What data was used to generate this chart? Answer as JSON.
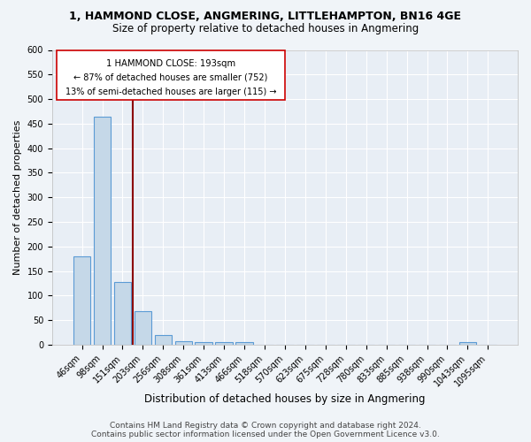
{
  "title": "1, HAMMOND CLOSE, ANGMERING, LITTLEHAMPTON, BN16 4GE",
  "subtitle": "Size of property relative to detached houses in Angmering",
  "xlabel": "Distribution of detached houses by size in Angmering",
  "ylabel": "Number of detached properties",
  "bin_labels": [
    "46sqm",
    "98sqm",
    "151sqm",
    "203sqm",
    "256sqm",
    "308sqm",
    "361sqm",
    "413sqm",
    "466sqm",
    "518sqm",
    "570sqm",
    "623sqm",
    "675sqm",
    "728sqm",
    "780sqm",
    "833sqm",
    "885sqm",
    "938sqm",
    "990sqm",
    "1043sqm",
    "1095sqm"
  ],
  "bin_values": [
    180,
    465,
    127,
    69,
    20,
    8,
    6,
    5,
    5,
    0,
    0,
    0,
    0,
    0,
    0,
    0,
    0,
    0,
    0,
    5,
    0
  ],
  "bar_color": "#c5d8e8",
  "bar_edge_color": "#5b9bd5",
  "property_label": "1 HAMMOND CLOSE: 193sqm",
  "annotation_line1": "← 87% of detached houses are smaller (752)",
  "annotation_line2": "13% of semi-detached houses are larger (115) →",
  "vline_color": "#8b0000",
  "vline_x": 2.5,
  "footer_line1": "Contains HM Land Registry data © Crown copyright and database right 2024.",
  "footer_line2": "Contains public sector information licensed under the Open Government Licence v3.0.",
  "fig_bg_color": "#f0f4f8",
  "plot_bg_color": "#e8eef5",
  "grid_color": "#ffffff",
  "ylim": [
    0,
    600
  ],
  "yticks": [
    0,
    50,
    100,
    150,
    200,
    250,
    300,
    350,
    400,
    450,
    500,
    550,
    600
  ],
  "title_fontsize": 9,
  "subtitle_fontsize": 8.5,
  "xlabel_fontsize": 8.5,
  "ylabel_fontsize": 8,
  "tick_fontsize": 7,
  "footer_fontsize": 6.5
}
